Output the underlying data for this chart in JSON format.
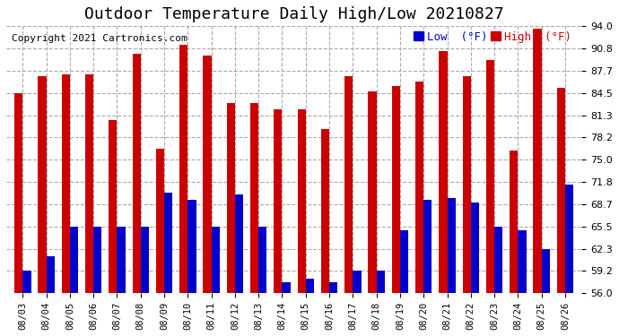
{
  "title": "Outdoor Temperature Daily High/Low 20210827",
  "copyright": "Copyright 2021 Cartronics.com",
  "dates": [
    "08/03",
    "08/04",
    "08/05",
    "08/06",
    "08/07",
    "08/08",
    "08/09",
    "08/10",
    "08/11",
    "08/12",
    "08/13",
    "08/14",
    "08/15",
    "08/16",
    "08/17",
    "08/18",
    "08/19",
    "08/20",
    "08/21",
    "08/22",
    "08/23",
    "08/24",
    "08/25",
    "08/26"
  ],
  "highs": [
    84.5,
    86.9,
    87.1,
    87.1,
    80.6,
    90.1,
    76.5,
    91.4,
    89.8,
    83.0,
    83.0,
    82.2,
    82.2,
    79.3,
    86.9,
    84.7,
    85.5,
    86.1,
    90.5,
    86.9,
    89.2,
    76.3,
    93.6,
    85.2
  ],
  "lows": [
    59.2,
    61.3,
    65.5,
    65.5,
    65.5,
    65.5,
    70.3,
    69.3,
    65.5,
    70.0,
    65.5,
    57.5,
    58.0,
    57.5,
    59.2,
    59.2,
    65.0,
    69.3,
    69.6,
    68.9,
    65.5,
    64.9,
    62.3,
    71.5
  ],
  "high_color": "#cc0000",
  "low_color": "#0000cc",
  "ylim_min": 56.0,
  "ylim_max": 94.0,
  "yticks": [
    56.0,
    59.2,
    62.3,
    65.5,
    68.7,
    71.8,
    75.0,
    78.2,
    81.3,
    84.5,
    87.7,
    90.8,
    94.0
  ],
  "bg_color": "#ffffff",
  "grid_color": "#aaaaaa",
  "title_fontsize": 13,
  "copyright_fontsize": 8,
  "bar_width": 0.35
}
